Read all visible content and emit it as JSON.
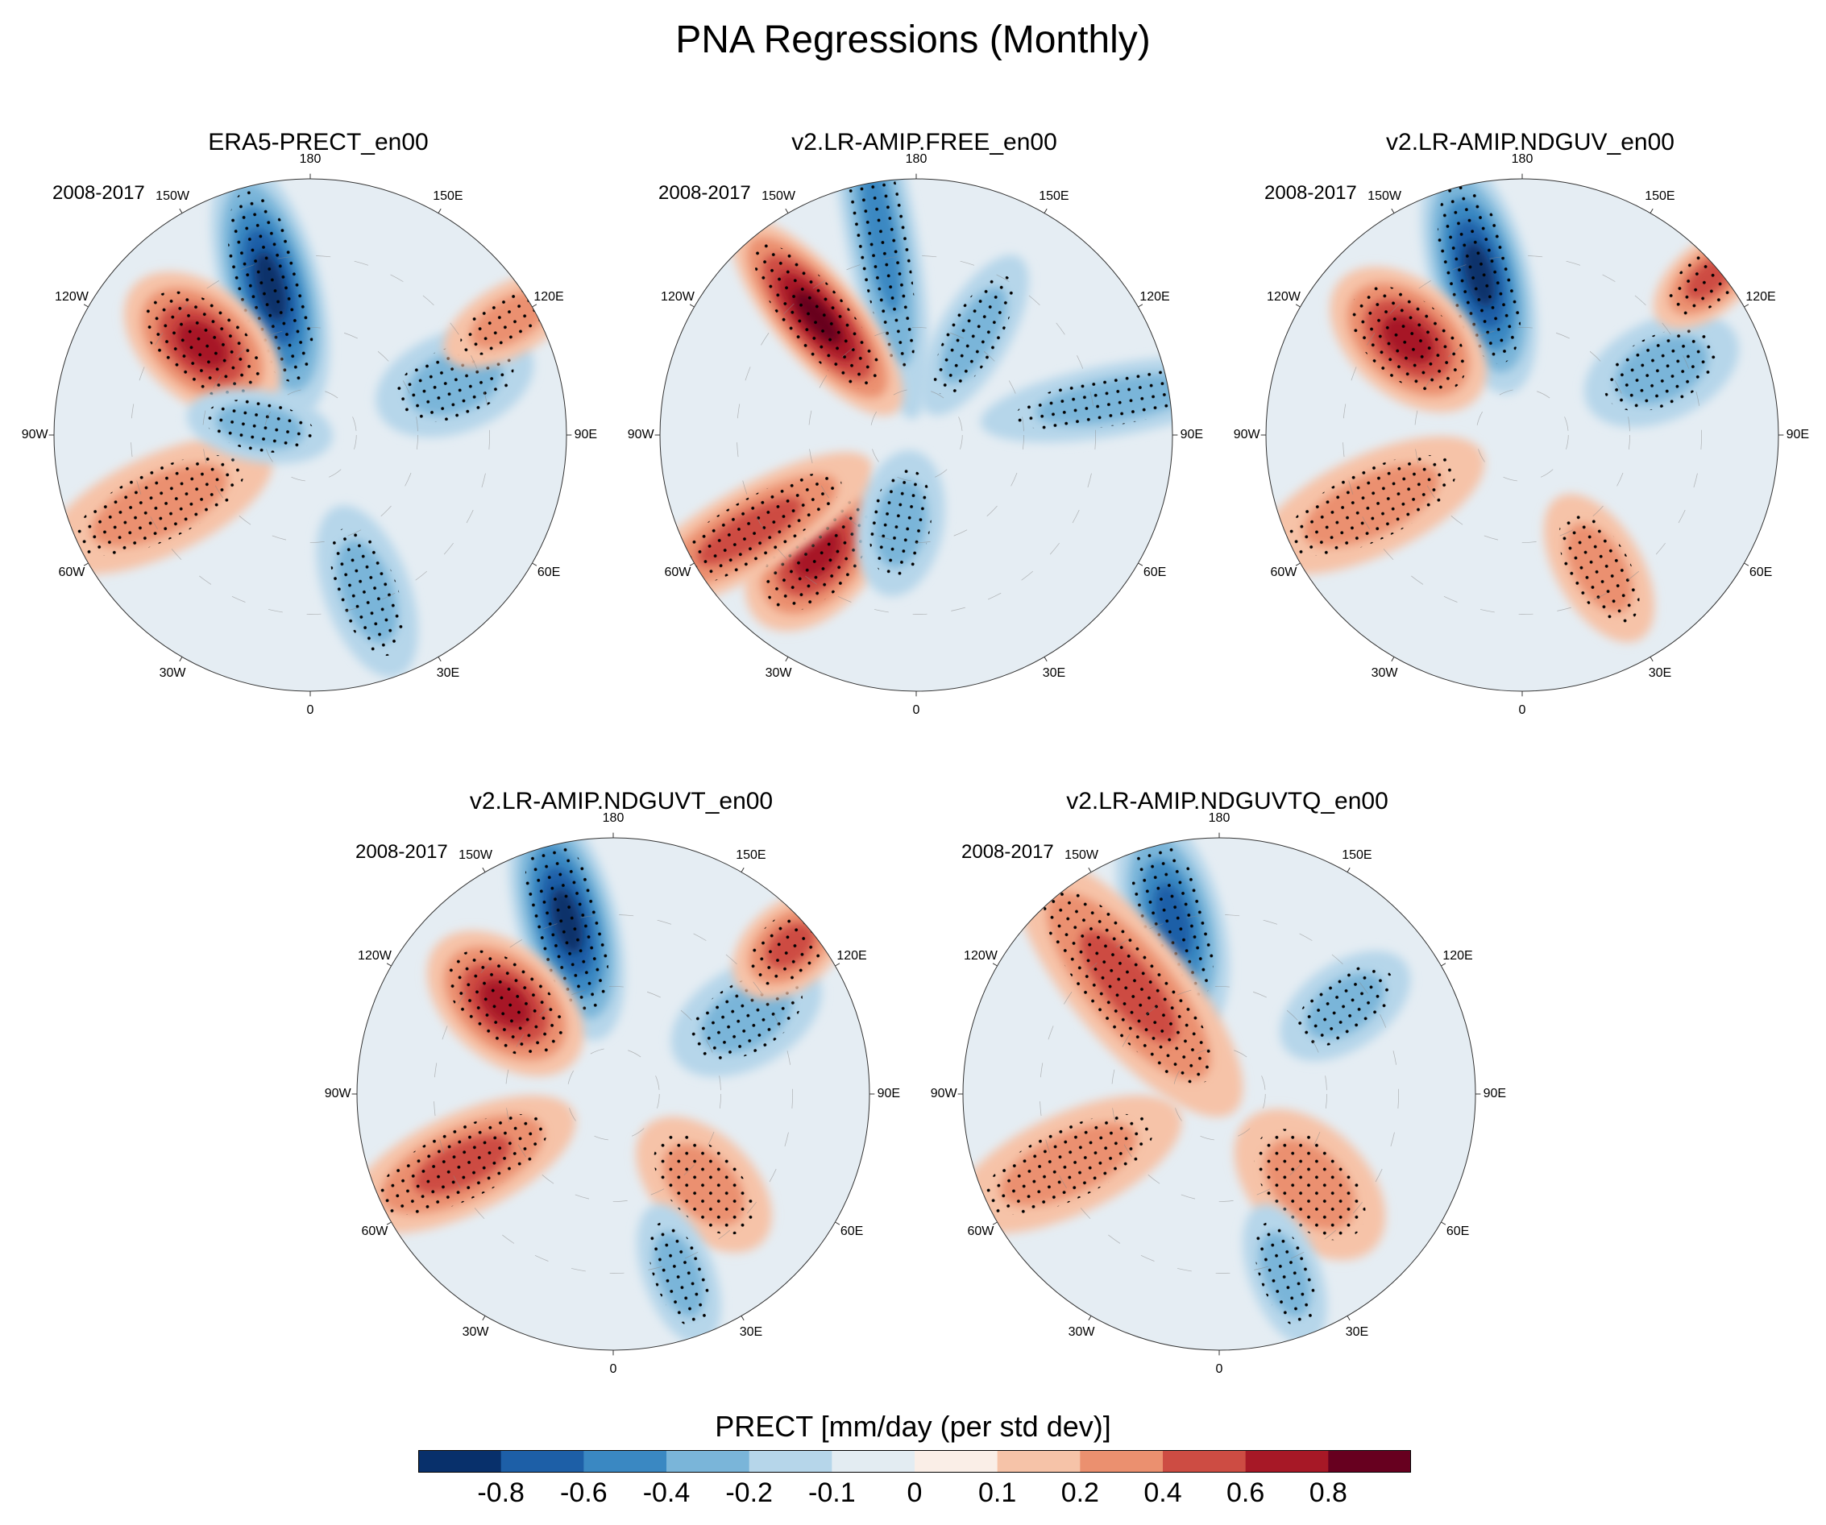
{
  "figure_title": "PNA Regressions (Monthly)",
  "chart_data": {
    "type": "heatmap",
    "projection": "north polar stereographic",
    "variable_label": "PRECT [mm/day (per std dev)]",
    "period": "2008-2017",
    "colorbar": {
      "colors": [
        "#08306b",
        "#1d5fa7",
        "#3a88c2",
        "#7ab5d9",
        "#b6d6ea",
        "#e3ecf2",
        "#faeee7",
        "#f6c3a8",
        "#eb906f",
        "#cd4c43",
        "#a71826",
        "#67001f"
      ],
      "tick_labels": [
        "-0.8",
        "-0.6",
        "-0.4",
        "-0.2",
        "-0.1",
        "0",
        "0.1",
        "0.2",
        "0.4",
        "0.6",
        "0.8"
      ],
      "levels": [
        -0.8,
        -0.6,
        -0.4,
        -0.2,
        -0.1,
        0,
        0.1,
        0.2,
        0.4,
        0.6,
        0.8
      ]
    },
    "lon_labels": [
      "180",
      "150E",
      "120E",
      "90E",
      "60E",
      "30E",
      "0",
      "30W",
      "60W",
      "90W",
      "120W",
      "150W"
    ],
    "panels": [
      {
        "title": "ERA5-PRECT_en00",
        "period": "2008-2017",
        "anomalies": [
          {
            "lon": -165,
            "r": 0.6,
            "value": -0.8,
            "spread": [
              32,
              14
            ]
          },
          {
            "lon": -130,
            "r": 0.55,
            "value": 0.6,
            "spread": [
              22,
              16
            ]
          },
          {
            "lon": 110,
            "r": 0.6,
            "value": -0.3,
            "spread": [
              20,
              14
            ]
          },
          {
            "lon": -65,
            "r": 0.65,
            "value": 0.3,
            "spread": [
              30,
              14
            ]
          },
          {
            "lon": 20,
            "r": 0.65,
            "value": -0.2,
            "spread": [
              22,
              12
            ]
          },
          {
            "lon": -100,
            "r": 0.2,
            "value": -0.2,
            "spread": [
              18,
              10
            ]
          },
          {
            "lon": 120,
            "r": 0.9,
            "value": 0.3,
            "spread": [
              18,
              10
            ]
          }
        ]
      },
      {
        "title": "v2.LR-AMIP.FREE_en00",
        "period": "2008-2017",
        "anomalies": [
          {
            "lon": -170,
            "r": 0.8,
            "value": -0.5,
            "spread": [
              46,
              10
            ]
          },
          {
            "lon": -140,
            "r": 0.6,
            "value": 0.8,
            "spread": [
              30,
              12
            ]
          },
          {
            "lon": -40,
            "r": 0.6,
            "value": 0.6,
            "spread": [
              22,
              16
            ]
          },
          {
            "lon": -60,
            "r": 0.75,
            "value": 0.4,
            "spread": [
              34,
              12
            ]
          },
          {
            "lon": 100,
            "r": 0.8,
            "value": -0.3,
            "spread": [
              34,
              10
            ]
          },
          {
            "lon": -10,
            "r": 0.35,
            "value": -0.3,
            "spread": [
              18,
              12
            ]
          },
          {
            "lon": 150,
            "r": 0.45,
            "value": -0.2,
            "spread": [
              22,
              10
            ]
          }
        ]
      },
      {
        "title": "v2.LR-AMIP.NDGUV_en00",
        "period": "2008-2017",
        "anomalies": [
          {
            "lon": -165,
            "r": 0.65,
            "value": -0.8,
            "spread": [
              30,
              14
            ]
          },
          {
            "lon": -130,
            "r": 0.58,
            "value": 0.6,
            "spread": [
              22,
              16
            ]
          },
          {
            "lon": 115,
            "r": 0.6,
            "value": -0.3,
            "spread": [
              20,
              14
            ]
          },
          {
            "lon": -65,
            "r": 0.65,
            "value": 0.3,
            "spread": [
              30,
              14
            ]
          },
          {
            "lon": 30,
            "r": 0.6,
            "value": 0.2,
            "spread": [
              20,
              12
            ]
          },
          {
            "lon": 130,
            "r": 0.95,
            "value": 0.4,
            "spread": [
              16,
              10
            ]
          }
        ]
      },
      {
        "title": "v2.LR-AMIP.NDGUVT_en00",
        "period": "2008-2017",
        "anomalies": [
          {
            "lon": -165,
            "r": 0.7,
            "value": -0.8,
            "spread": [
              30,
              14
            ]
          },
          {
            "lon": -130,
            "r": 0.55,
            "value": 0.6,
            "spread": [
              22,
              16
            ]
          },
          {
            "lon": 120,
            "r": 0.6,
            "value": -0.3,
            "spread": [
              20,
              14
            ]
          },
          {
            "lon": 130,
            "r": 0.9,
            "value": 0.5,
            "spread": [
              16,
              12
            ]
          },
          {
            "lon": -65,
            "r": 0.65,
            "value": 0.4,
            "spread": [
              30,
              14
            ]
          },
          {
            "lon": 45,
            "r": 0.5,
            "value": 0.2,
            "spread": [
              20,
              14
            ]
          },
          {
            "lon": 20,
            "r": 0.75,
            "value": -0.2,
            "spread": [
              18,
              10
            ]
          }
        ]
      },
      {
        "title": "v2.LR-AMIP.NDGUVTQ_en00",
        "period": "2008-2017",
        "anomalies": [
          {
            "lon": -165,
            "r": 0.7,
            "value": -0.6,
            "spread": [
              28,
              14
            ]
          },
          {
            "lon": -140,
            "r": 0.55,
            "value": 0.4,
            "spread": [
              40,
              16
            ]
          },
          {
            "lon": 125,
            "r": 0.6,
            "value": -0.3,
            "spread": [
              18,
              12
            ]
          },
          {
            "lon": -65,
            "r": 0.65,
            "value": 0.3,
            "spread": [
              30,
              14
            ]
          },
          {
            "lon": 45,
            "r": 0.5,
            "value": 0.2,
            "spread": [
              22,
              16
            ]
          },
          {
            "lon": 20,
            "r": 0.75,
            "value": -0.2,
            "spread": [
              18,
              10
            ]
          }
        ]
      }
    ]
  }
}
